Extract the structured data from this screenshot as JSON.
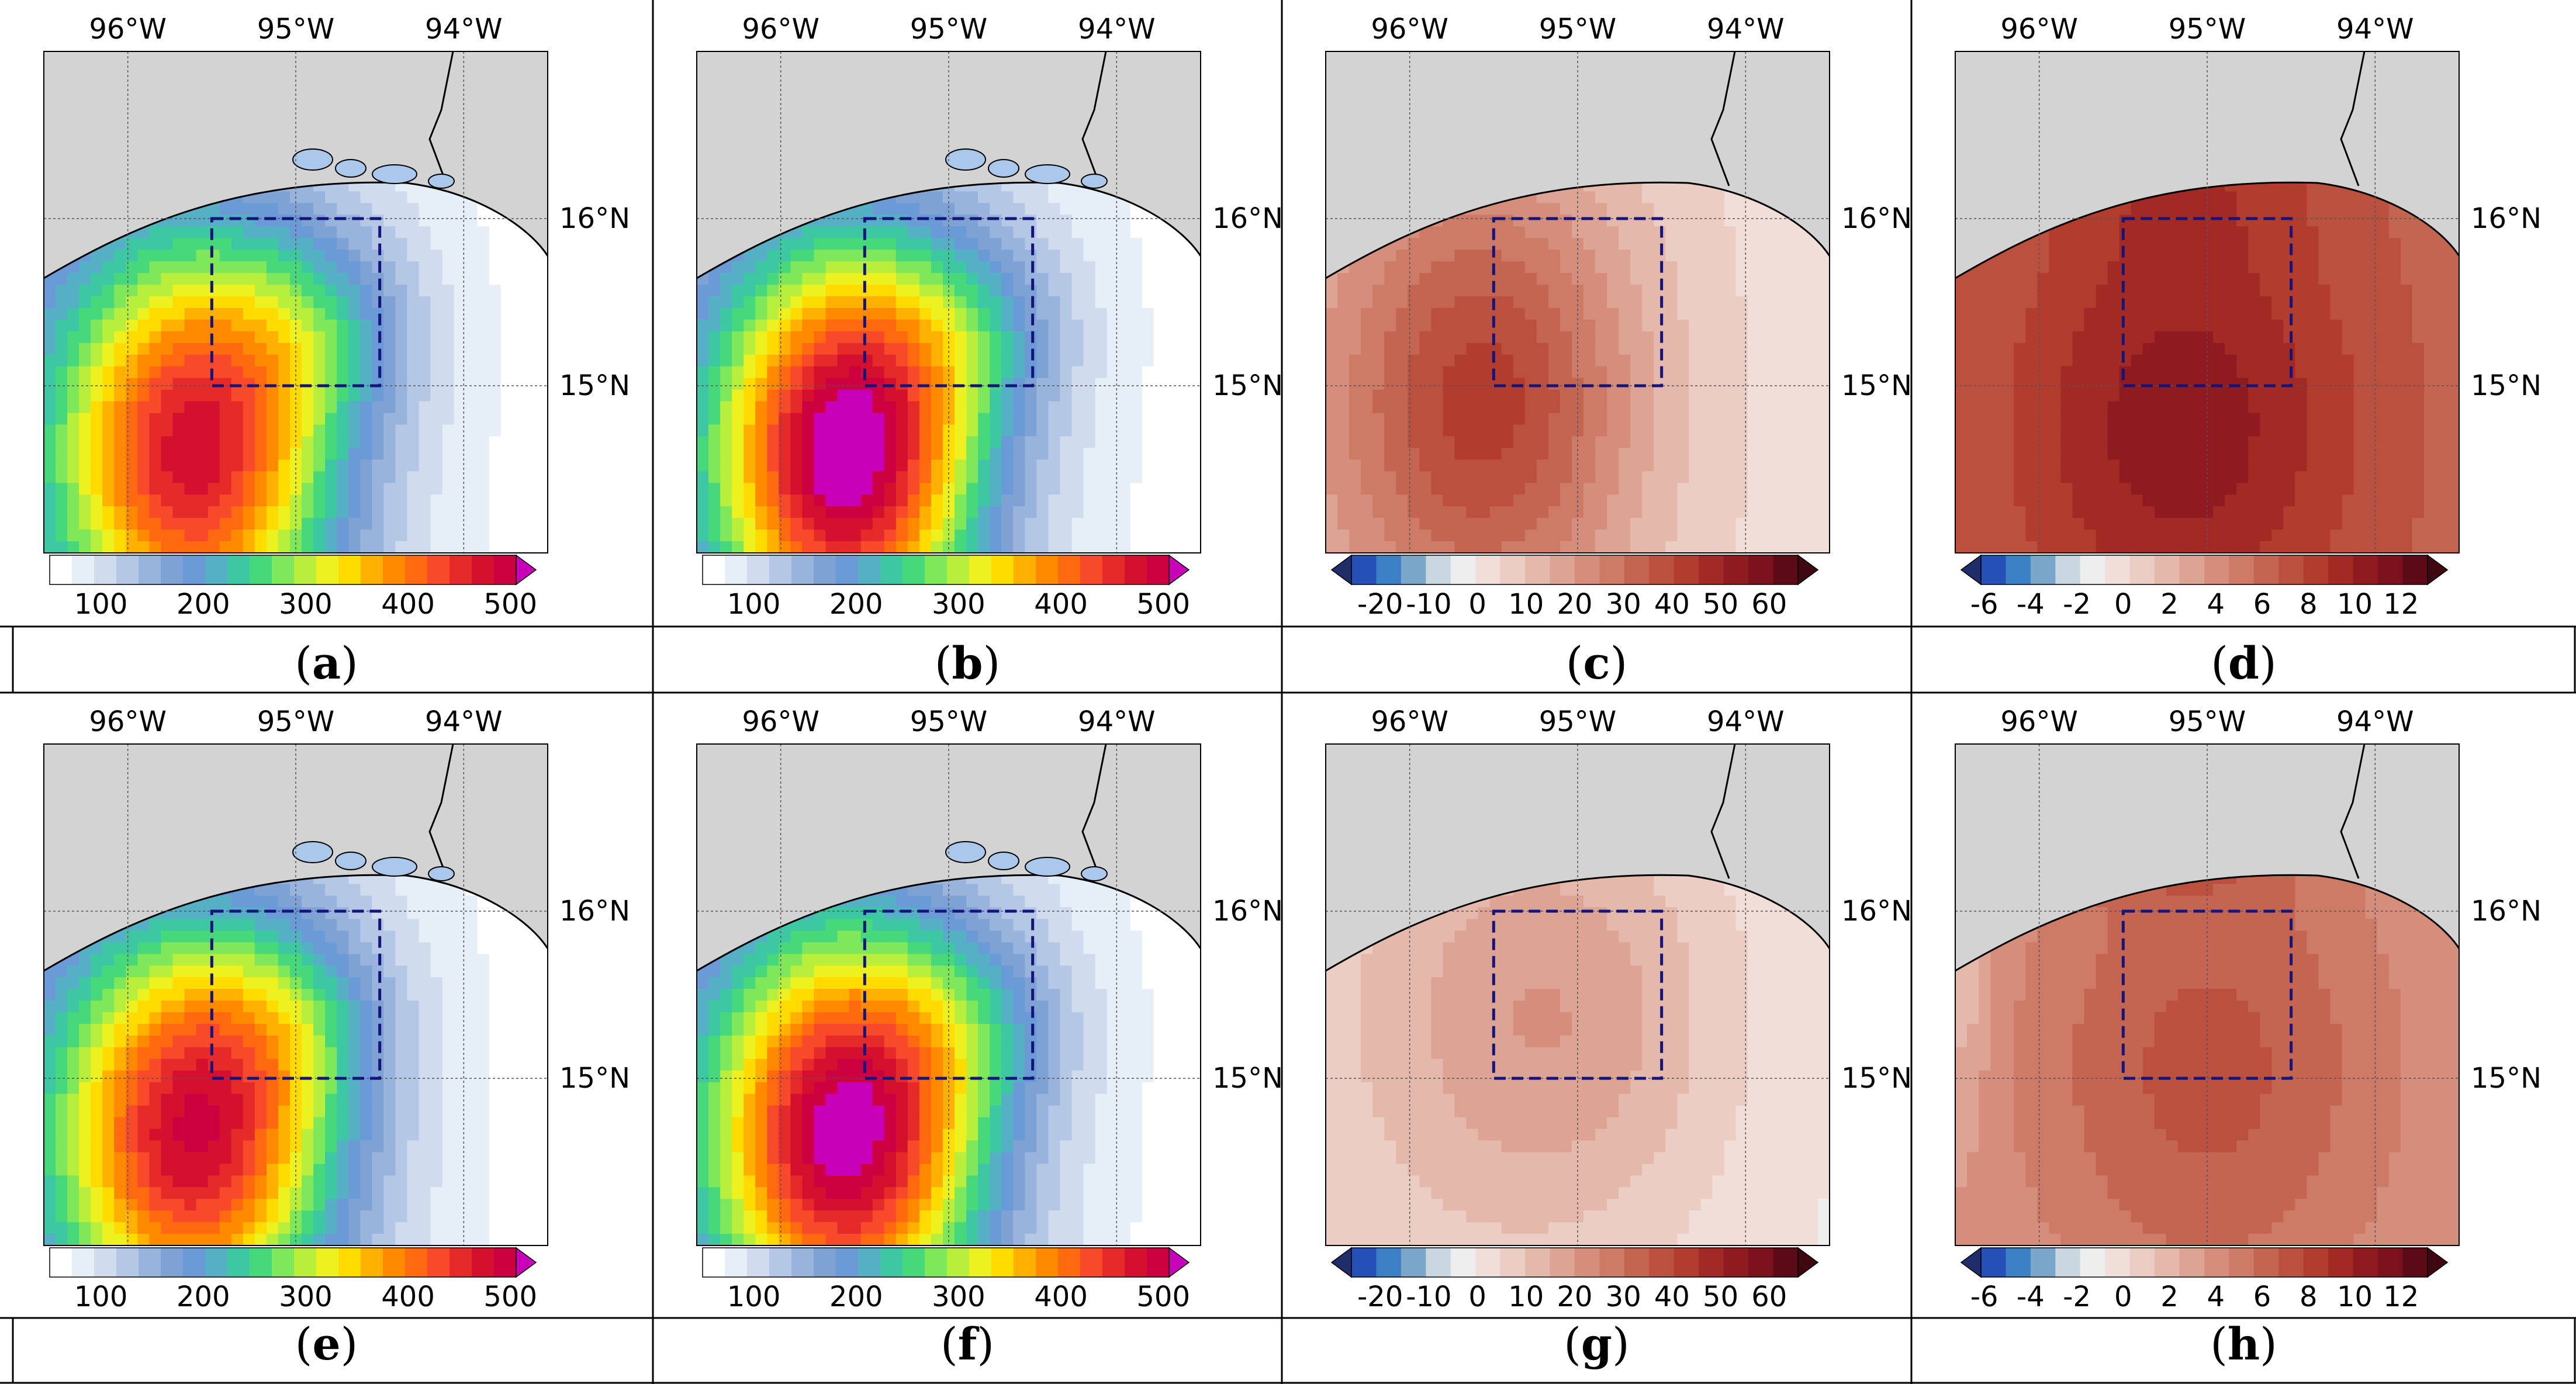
{
  "panels": [
    {
      "letter": "a",
      "kind": "precip",
      "pattern": "early"
    },
    {
      "letter": "b",
      "kind": "precip",
      "pattern": "early_strong"
    },
    {
      "letter": "c",
      "kind": "diff20",
      "pattern": "diff_early"
    },
    {
      "letter": "d",
      "kind": "diff6",
      "pattern": "diff_early_strong"
    },
    {
      "letter": "e",
      "kind": "precip",
      "pattern": "late"
    },
    {
      "letter": "f",
      "kind": "precip",
      "pattern": "late_strong"
    },
    {
      "letter": "g",
      "kind": "diff20",
      "pattern": "diff_late"
    },
    {
      "letter": "h",
      "kind": "diff6",
      "pattern": "diff_late_strong"
    }
  ],
  "map": {
    "lon_labels": [
      "96°W",
      "95°W",
      "94°W"
    ],
    "lat_labels": [
      "16°N",
      "15°N"
    ],
    "lon_ticks": [
      -96,
      -95,
      -94
    ],
    "lat_ticks": [
      16,
      15
    ],
    "lon_range": [
      -96.5,
      -93.5
    ],
    "lat_range": [
      14.0,
      17.0
    ],
    "box": {
      "lon": [
        -95.5,
        -94.5
      ],
      "lat": [
        15.0,
        16.0
      ]
    },
    "land_color": "#d3d3d3",
    "ocean_outside_color": "#ffffff",
    "box_color": "#14147a"
  },
  "colorbars": {
    "precip": {
      "labels": [
        "100",
        "200",
        "300",
        "400",
        "500"
      ],
      "label_values": [
        100,
        200,
        300,
        400,
        500
      ],
      "range": [
        50,
        525
      ],
      "extend": "max",
      "colors": [
        "#ffffff",
        "#e6eef7",
        "#d0dcee",
        "#b4c8e6",
        "#98b4dc",
        "#7ea2d4",
        "#6a9bd6",
        "#55b0c6",
        "#3dc7a2",
        "#48d87c",
        "#7fe75a",
        "#b8ef3c",
        "#ecf11f",
        "#ffdb00",
        "#ffb000",
        "#ff8a00",
        "#ff6a10",
        "#f84a2a",
        "#e62a2a",
        "#d4102e",
        "#cc0040",
        "#c800b8"
      ]
    },
    "diff20": {
      "labels": [
        "-20",
        "-10",
        "0",
        "10",
        "20",
        "30",
        "40",
        "50",
        "60"
      ],
      "label_values": [
        -20,
        -10,
        0,
        10,
        20,
        30,
        40,
        50,
        60
      ],
      "range": [
        -30,
        70
      ],
      "extend": "both",
      "colors": [
        "#1f2d6b",
        "#2450b8",
        "#3b7fc4",
        "#79a6c9",
        "#c9d7e0",
        "#eeeeee",
        "#f1ded8",
        "#ebcdc3",
        "#e4b8aa",
        "#dda393",
        "#d58e7c",
        "#cd7a66",
        "#c46551",
        "#bb503e",
        "#b23c2e",
        "#a32a24",
        "#8f1a1f",
        "#7a111d",
        "#5c0b16",
        "#3f0710"
      ]
    },
    "diff6": {
      "labels": [
        "-6",
        "-4",
        "-2",
        "0",
        "2",
        "4",
        "6",
        "8",
        "10",
        "12"
      ],
      "label_values": [
        -6,
        -4,
        -2,
        0,
        2,
        4,
        6,
        8,
        10,
        12
      ],
      "range": [
        -7,
        14
      ],
      "extend": "both",
      "colors": [
        "#1f2d6b",
        "#2450b8",
        "#3b7fc4",
        "#79a6c9",
        "#c9d7e0",
        "#eeeeee",
        "#f1ded8",
        "#ebcdc3",
        "#e4b8aa",
        "#dda393",
        "#d58e7c",
        "#cd7a66",
        "#c46551",
        "#bb503e",
        "#b23c2e",
        "#a32a24",
        "#8f1a1f",
        "#7a111d",
        "#5c0b16",
        "#3f0710"
      ]
    }
  }
}
